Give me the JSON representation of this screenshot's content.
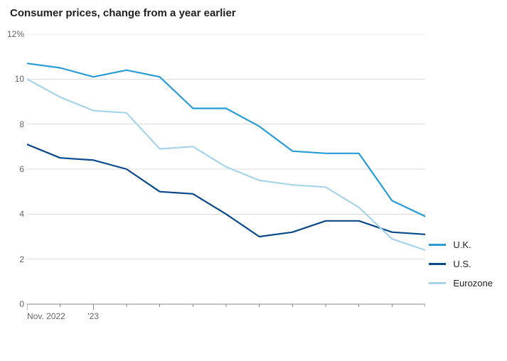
{
  "chart": {
    "type": "line",
    "title": "Consumer prices, change from a year earlier",
    "title_fontsize": 15,
    "title_fontweight": 700,
    "title_color": "#222222",
    "background_color": "#ffffff",
    "grid_color": "#dddddd",
    "axis_color": "#888888",
    "axis_label_color": "#666666",
    "axis_label_fontsize": 12,
    "y": {
      "min": 0,
      "max": 12,
      "tick_step": 2,
      "ticks": [
        0,
        2,
        4,
        6,
        8,
        10,
        12
      ],
      "tick_labels": [
        "0",
        "2",
        "4",
        "6",
        "8",
        "10",
        "12%"
      ]
    },
    "x": {
      "count": 13,
      "major_ticks_idx": [
        0,
        2
      ],
      "minor_ticks_idx": [
        1,
        3,
        4,
        5,
        6,
        7,
        8,
        9,
        10,
        11,
        12
      ],
      "labels": [
        {
          "idx": 0,
          "text": "Nov. 2022"
        },
        {
          "idx": 2,
          "text": "'23"
        }
      ]
    },
    "line_width": 2.2,
    "series": [
      {
        "name": "U.K.",
        "color": "#299cd6",
        "values": [
          10.7,
          10.5,
          10.1,
          10.4,
          10.1,
          8.7,
          8.7,
          7.9,
          6.8,
          6.7,
          6.7,
          4.6,
          3.9
        ]
      },
      {
        "name": "U.S.",
        "color": "#0a4a8a",
        "values": [
          7.1,
          6.5,
          6.4,
          6.0,
          5.0,
          4.9,
          4.0,
          3.0,
          3.2,
          3.7,
          3.7,
          3.2,
          3.1
        ]
      },
      {
        "name": "Eurozone",
        "color": "#a8d4ea",
        "values": [
          10.0,
          9.2,
          8.6,
          8.5,
          6.9,
          7.0,
          6.1,
          5.5,
          5.3,
          5.2,
          4.3,
          2.9,
          2.4
        ]
      }
    ],
    "legend": {
      "fontsize": 13,
      "text_color": "#222222",
      "swatch_width": 24,
      "swatch_height": 3
    }
  }
}
